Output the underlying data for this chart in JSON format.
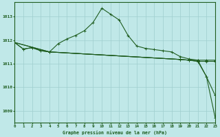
{
  "xlabel": "Graphe pression niveau de la mer (hPa)",
  "ylim": [
    1008.5,
    1013.6
  ],
  "xlim": [
    0,
    23
  ],
  "yticks": [
    1009,
    1010,
    1011,
    1012,
    1013
  ],
  "xticks": [
    0,
    1,
    2,
    3,
    4,
    5,
    6,
    7,
    8,
    9,
    10,
    11,
    12,
    13,
    14,
    15,
    16,
    17,
    18,
    19,
    20,
    21,
    22,
    23
  ],
  "bg_color": "#c0e8e8",
  "grid_color": "#9ecece",
  "line_color": "#1e5c1e",
  "line1_x": [
    0,
    1,
    2,
    3,
    4,
    19,
    20,
    21,
    22,
    23
  ],
  "line1": [
    1011.9,
    1011.62,
    1011.68,
    1011.55,
    1011.5,
    1011.18,
    1011.15,
    1011.15,
    1011.15,
    1011.15
  ],
  "line2_x": [
    0,
    1,
    2,
    3,
    4,
    5,
    6,
    7,
    8,
    9,
    10,
    11,
    12,
    13,
    14,
    15,
    16,
    17,
    18,
    19,
    20,
    21,
    22,
    23
  ],
  "line2": [
    1011.9,
    1011.62,
    1011.68,
    1011.55,
    1011.5,
    1011.85,
    1012.05,
    1012.2,
    1012.4,
    1012.75,
    1013.35,
    1013.1,
    1012.85,
    1012.2,
    1011.75,
    1011.65,
    1011.6,
    1011.55,
    1011.5,
    1011.3,
    1011.2,
    1011.15,
    1010.45,
    1009.65
  ],
  "line3_x": [
    0,
    4,
    19,
    20,
    21,
    22,
    23
  ],
  "line3": [
    1011.9,
    1011.5,
    1011.18,
    1011.15,
    1011.1,
    1010.45,
    1008.7
  ],
  "line4_x": [
    0,
    4,
    19,
    20,
    21,
    22,
    23
  ],
  "line4": [
    1011.9,
    1011.5,
    1011.18,
    1011.15,
    1011.1,
    1011.1,
    1011.1
  ]
}
